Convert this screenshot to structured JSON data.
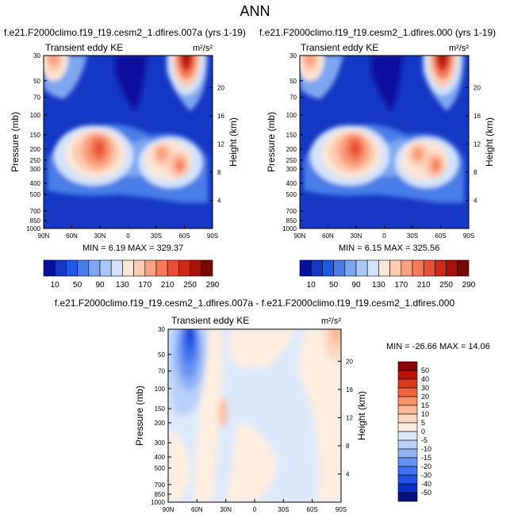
{
  "page_title": "ANN",
  "colors": {
    "top_levels": [
      "#08119e",
      "#1438c4",
      "#2058e6",
      "#4a7de8",
      "#7ea6f0",
      "#a9c8f7",
      "#d2e3fb",
      "#fbe6d8",
      "#fdcbb0",
      "#f9a180",
      "#f47a5a",
      "#e84f35",
      "#cc2a16",
      "#a7120a",
      "#780a04"
    ],
    "diff_levels": [
      "#06127a",
      "#0b2fc4",
      "#2251e6",
      "#3f70f0",
      "#6592f3",
      "#90b3f5",
      "#b8d0f8",
      "#dde9fb",
      "#fdeee0",
      "#fcd6bd",
      "#fbb995",
      "#f7916a",
      "#f0643f",
      "#dd391c",
      "#b81507",
      "#8a0503"
    ]
  },
  "panels": [
    {
      "title": "f.e21.F2000climo.f19_f19.cesm2_1.dfires.007a (yrs 1-19)",
      "subtitle": "Transient eddy KE",
      "units": "m²/s²",
      "stats": "MIN =  6.19   MAX = 329.37"
    },
    {
      "title": "f.e21.F2000climo.f19_f19.cesm2_1.dfires.000 (yrs 1-19)",
      "subtitle": "Transient eddy KE",
      "units": "m²/s²",
      "stats": "MIN =  6.15   MAX = 325.56"
    },
    {
      "title": "f.e21.F2000climo.f19_f19.cesm2_1.dfires.007a - f.e21.F2000climo.f19_f19.cesm2_1.dfires.000",
      "subtitle": "Transient eddy KE",
      "units": "m²/s²",
      "stats": "MIN = -26.66   MAX =  14.06"
    }
  ],
  "axes": {
    "ylabel": "Pressure (mb)",
    "y2label": "Height (km)"
  },
  "chart_data": [
    {
      "type": "contour",
      "title": "f.e21.F2000climo.f19_f19.cesm2_1.dfires.007a (yrs 1-19)",
      "x_ticks": [
        "90N",
        "60N",
        "30N",
        "0",
        "30S",
        "60S",
        "90S"
      ],
      "y_ticks": [
        30,
        50,
        70,
        100,
        150,
        200,
        250,
        300,
        400,
        500,
        700,
        850,
        1000
      ],
      "y2_ticks": [
        20,
        16,
        12,
        8,
        4
      ],
      "ylabel": "Pressure (mb)",
      "y2label": "Height (km)",
      "min": 6.19,
      "max": 329.37,
      "colorbar_labels": [
        10,
        50,
        90,
        130,
        170,
        210,
        250,
        290
      ],
      "features": [
        {
          "lat": 28,
          "p": 210,
          "peak": 300
        },
        {
          "lat": -36,
          "p": 200,
          "peak": 210
        },
        {
          "lat": -52,
          "p": 290,
          "peak": 260
        },
        {
          "lat": -55,
          "p": 30,
          "peak": 329
        },
        {
          "lat": 80,
          "p": 35,
          "peak": 180
        }
      ]
    },
    {
      "type": "contour",
      "title": "f.e21.F2000climo.f19_f19.cesm2_1.dfires.000 (yrs 1-19)",
      "x_ticks": [
        "90N",
        "60N",
        "30N",
        "0",
        "30S",
        "60S",
        "90S"
      ],
      "y_ticks": [
        30,
        50,
        70,
        100,
        150,
        200,
        250,
        300,
        400,
        500,
        700,
        850,
        1000
      ],
      "y2_ticks": [
        20,
        16,
        12,
        8,
        4
      ],
      "ylabel": "Pressure (mb)",
      "y2label": "Height (km)",
      "min": 6.15,
      "max": 325.56,
      "colorbar_labels": [
        10,
        50,
        90,
        130,
        170,
        210,
        250,
        290
      ],
      "features": [
        {
          "lat": 28,
          "p": 210,
          "peak": 295
        },
        {
          "lat": -36,
          "p": 200,
          "peak": 205
        },
        {
          "lat": -52,
          "p": 290,
          "peak": 255
        },
        {
          "lat": -55,
          "p": 30,
          "peak": 325
        },
        {
          "lat": 80,
          "p": 35,
          "peak": 180
        }
      ]
    },
    {
      "type": "contour",
      "title": "f.e21.F2000climo.f19_f19.cesm2_1.dfires.007a - f.e21.F2000climo.f19_f19.cesm2_1.dfires.000",
      "x_ticks": [
        "90N",
        "60N",
        "30N",
        "0",
        "30S",
        "60S",
        "90S"
      ],
      "y_ticks": [
        30,
        50,
        70,
        100,
        150,
        200,
        300,
        400,
        500,
        700,
        850,
        1000
      ],
      "y2_ticks": [
        20,
        16,
        12,
        8,
        4
      ],
      "ylabel": "Pressure (mb)",
      "y2label": "Height (km)",
      "min": -26.66,
      "max": 14.06,
      "colorbar_labels": [
        50,
        40,
        30,
        20,
        15,
        10,
        5,
        0,
        -5,
        -10,
        -15,
        -20,
        -30,
        -40,
        -50
      ],
      "features": [
        {
          "lat": 68,
          "p": 40,
          "value": -26.66
        },
        {
          "lat": -85,
          "p": 35,
          "value": 14.06
        },
        {
          "lat": 25,
          "p": 160,
          "value": 8
        }
      ]
    }
  ]
}
